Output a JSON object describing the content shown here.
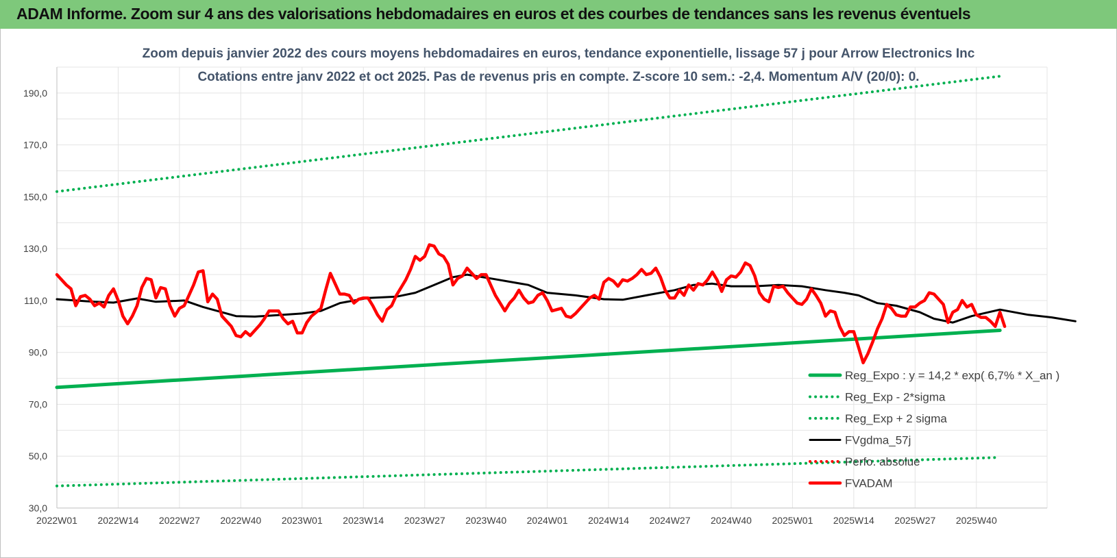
{
  "header": {
    "title": "ADAM Informe. Zoom sur 4 ans des valorisations hebdomadaires en euros et des courbes de tendances sans les revenus éventuels"
  },
  "colors": {
    "banner": "#7ec87b",
    "trend": "#00b050",
    "smooth": "#000000",
    "price": "#ff0000",
    "title": "#44546a"
  },
  "chart_data": {
    "type": "line",
    "title": "Zoom depuis janvier 2022 des cours moyens hebdomadaires en euros, tendance exponentielle, lissage 57 j pour Arrow Electronics Inc",
    "subtitle": "Cotations entre janv 2022 et oct 2025. Pas de revenus pris en compte. Z-score 10 sem.: -2,4.  Momentum A/V (20/0): 0.",
    "xlabel": "",
    "ylabel": "",
    "ylim": [
      30,
      200
    ],
    "yticks": [
      "30,0",
      "50,0",
      "70,0",
      "90,0",
      "110,0",
      "130,0",
      "150,0",
      "170,0",
      "190,0"
    ],
    "x_tick_labels": [
      "2022W01",
      "2022W14",
      "2022W27",
      "2022W40",
      "2023W01",
      "2023W14",
      "2023W27",
      "2023W40",
      "2024W01",
      "2024W14",
      "2024W27",
      "2024W40",
      "2025W01",
      "2025W14",
      "2025W27",
      "2025W40"
    ],
    "x_range_weeks": [
      0,
      200
    ],
    "grid": true,
    "legend_position": "bottom-right",
    "series": [
      {
        "name": "Reg_Expo : y = 14,2 * exp( 6,7% *  X_an )",
        "style": "solid-thick",
        "color": "#00b050",
        "points": [
          [
            0,
            76.5
          ],
          [
            200,
            98.5
          ]
        ]
      },
      {
        "name": "Reg_Exp - 2*sigma",
        "style": "dotted",
        "color": "#00b050",
        "points": [
          [
            0,
            38.5
          ],
          [
            200,
            49.5
          ]
        ]
      },
      {
        "name": "Reg_Exp + 2 sigma",
        "style": "dotted",
        "color": "#00b050",
        "points": [
          [
            0,
            152
          ],
          [
            200,
            196.5
          ]
        ]
      },
      {
        "name": "FVgdma_57j",
        "style": "solid",
        "color": "#000000",
        "points": [
          [
            0,
            110.5
          ],
          [
            8,
            109.5
          ],
          [
            12,
            109.2
          ],
          [
            17,
            110.8
          ],
          [
            21,
            109.5
          ],
          [
            27,
            110
          ],
          [
            31,
            107.5
          ],
          [
            38,
            104
          ],
          [
            42,
            103.8
          ],
          [
            48,
            104.5
          ],
          [
            52,
            105
          ],
          [
            56,
            106
          ],
          [
            60,
            109
          ],
          [
            66,
            111
          ],
          [
            72,
            111.5
          ],
          [
            76,
            113
          ],
          [
            80,
            116
          ],
          [
            84,
            119
          ],
          [
            87,
            120
          ],
          [
            92,
            118.5
          ],
          [
            100,
            116
          ],
          [
            104,
            113
          ],
          [
            110,
            112
          ],
          [
            116,
            110.5
          ],
          [
            120,
            110.3
          ],
          [
            125,
            112
          ],
          [
            131,
            114
          ],
          [
            135,
            116
          ],
          [
            139,
            116.5
          ],
          [
            143,
            115.5
          ],
          [
            148,
            115.5
          ],
          [
            153,
            116
          ],
          [
            158,
            115.5
          ],
          [
            163,
            114
          ],
          [
            167,
            113
          ],
          [
            170,
            112
          ],
          [
            174,
            109
          ],
          [
            178,
            108
          ],
          [
            183,
            105.5
          ],
          [
            186,
            103
          ],
          [
            190,
            101.5
          ],
          [
            194,
            104
          ],
          [
            200,
            106.5
          ],
          [
            206,
            104.5
          ],
          [
            211,
            103.5
          ],
          [
            216,
            102
          ]
        ]
      },
      {
        "name": "Perfo. absolue",
        "style": "dotted",
        "color": "#ff0000",
        "points": []
      },
      {
        "name": "FVADAM",
        "style": "solid-thick",
        "color": "#ff0000",
        "points": [
          [
            0,
            120
          ],
          [
            2,
            116
          ],
          [
            3,
            114.5
          ],
          [
            4,
            108
          ],
          [
            5,
            111.5
          ],
          [
            6,
            112
          ],
          [
            7,
            110.5
          ],
          [
            8,
            108
          ],
          [
            9,
            109
          ],
          [
            10,
            107.5
          ],
          [
            11,
            112
          ],
          [
            12,
            114.5
          ],
          [
            13,
            110
          ],
          [
            14,
            104
          ],
          [
            15,
            101
          ],
          [
            16,
            104
          ],
          [
            17,
            108
          ],
          [
            18,
            115
          ],
          [
            19,
            118.5
          ],
          [
            20,
            118
          ],
          [
            21,
            111
          ],
          [
            22,
            115
          ],
          [
            23,
            114.5
          ],
          [
            24,
            108
          ],
          [
            25,
            104
          ],
          [
            26,
            107
          ],
          [
            27,
            108
          ],
          [
            28,
            112
          ],
          [
            29,
            116
          ],
          [
            30,
            121
          ],
          [
            31,
            121.5
          ],
          [
            32,
            109.5
          ],
          [
            33,
            112.5
          ],
          [
            34,
            110.5
          ],
          [
            35,
            104
          ],
          [
            36,
            102
          ],
          [
            37,
            100
          ],
          [
            38,
            96.5
          ],
          [
            39,
            96
          ],
          [
            40,
            98
          ],
          [
            41,
            96.5
          ],
          [
            42,
            98.5
          ],
          [
            43,
            100.5
          ],
          [
            44,
            103
          ],
          [
            45,
            106
          ],
          [
            46,
            106
          ],
          [
            47,
            106
          ],
          [
            48,
            103
          ],
          [
            49,
            101
          ],
          [
            50,
            102
          ],
          [
            51,
            97.5
          ],
          [
            52,
            97.5
          ],
          [
            53,
            101.5
          ],
          [
            54,
            104
          ],
          [
            55,
            105.5
          ],
          [
            56,
            107
          ],
          [
            57,
            114
          ],
          [
            58,
            120.5
          ],
          [
            59,
            116.5
          ],
          [
            60,
            112.5
          ],
          [
            61,
            112.5
          ],
          [
            62,
            112
          ],
          [
            63,
            109
          ],
          [
            64,
            110.5
          ],
          [
            65,
            111
          ],
          [
            66,
            111
          ],
          [
            67,
            108
          ],
          [
            68,
            104.5
          ],
          [
            69,
            102
          ],
          [
            70,
            106.5
          ],
          [
            71,
            108
          ],
          [
            72,
            112
          ],
          [
            73,
            115
          ],
          [
            74,
            118
          ],
          [
            75,
            122
          ],
          [
            76,
            127
          ],
          [
            77,
            125.5
          ],
          [
            78,
            127
          ],
          [
            79,
            131.5
          ],
          [
            80,
            131
          ],
          [
            81,
            128
          ],
          [
            82,
            127
          ],
          [
            83,
            124
          ],
          [
            84,
            116
          ],
          [
            85,
            118.5
          ],
          [
            86,
            119.5
          ],
          [
            87,
            122.5
          ],
          [
            88,
            120.5
          ],
          [
            89,
            118.5
          ],
          [
            90,
            120
          ],
          [
            91,
            120
          ],
          [
            92,
            116
          ],
          [
            93,
            112
          ],
          [
            94,
            109
          ],
          [
            95,
            106
          ],
          [
            96,
            109
          ],
          [
            97,
            111
          ],
          [
            98,
            114
          ],
          [
            99,
            111
          ],
          [
            100,
            109
          ],
          [
            101,
            109.5
          ],
          [
            102,
            112
          ],
          [
            103,
            113
          ],
          [
            104,
            110
          ],
          [
            105,
            106
          ],
          [
            106,
            106.5
          ],
          [
            107,
            107
          ],
          [
            108,
            104
          ],
          [
            109,
            103.5
          ],
          [
            110,
            105
          ],
          [
            111,
            107
          ],
          [
            112,
            109
          ],
          [
            113,
            111
          ],
          [
            114,
            112
          ],
          [
            115,
            110.5
          ],
          [
            116,
            117
          ],
          [
            117,
            118.5
          ],
          [
            118,
            117.5
          ],
          [
            119,
            115.5
          ],
          [
            120,
            118
          ],
          [
            121,
            117.5
          ],
          [
            122,
            118.5
          ],
          [
            123,
            120
          ],
          [
            124,
            122
          ],
          [
            125,
            120
          ],
          [
            126,
            120.5
          ],
          [
            127,
            122.5
          ],
          [
            128,
            119
          ],
          [
            129,
            114
          ],
          [
            130,
            111
          ],
          [
            131,
            111
          ],
          [
            132,
            114
          ],
          [
            133,
            112
          ],
          [
            134,
            116
          ],
          [
            135,
            114
          ],
          [
            136,
            116.5
          ],
          [
            137,
            116
          ],
          [
            138,
            118
          ],
          [
            139,
            121
          ],
          [
            140,
            118
          ],
          [
            141,
            113.5
          ],
          [
            142,
            118
          ],
          [
            143,
            119.5
          ],
          [
            144,
            119
          ],
          [
            145,
            121
          ],
          [
            146,
            124.5
          ],
          [
            147,
            123.5
          ],
          [
            148,
            119.5
          ],
          [
            149,
            113
          ],
          [
            150,
            110.5
          ],
          [
            151,
            109.5
          ],
          [
            152,
            115.5
          ],
          [
            153,
            115
          ],
          [
            154,
            115.5
          ],
          [
            155,
            113
          ],
          [
            156,
            111
          ],
          [
            157,
            109
          ],
          [
            158,
            108.5
          ],
          [
            159,
            110.5
          ],
          [
            160,
            114.5
          ],
          [
            161,
            112
          ],
          [
            162,
            109
          ],
          [
            163,
            104
          ],
          [
            164,
            106
          ],
          [
            165,
            105.5
          ],
          [
            166,
            100
          ],
          [
            167,
            96.5
          ],
          [
            168,
            98
          ],
          [
            169,
            98
          ],
          [
            170,
            92
          ],
          [
            171,
            86
          ],
          [
            172,
            89.5
          ],
          [
            173,
            94
          ],
          [
            174,
            99
          ],
          [
            175,
            103
          ],
          [
            176,
            108.5
          ],
          [
            177,
            107
          ],
          [
            178,
            104.5
          ],
          [
            179,
            104
          ],
          [
            180,
            104
          ],
          [
            181,
            107.5
          ],
          [
            182,
            107.5
          ],
          [
            183,
            109
          ],
          [
            184,
            110
          ],
          [
            185,
            113
          ],
          [
            186,
            112.5
          ],
          [
            187,
            110.5
          ],
          [
            188,
            108.5
          ],
          [
            189,
            101.5
          ],
          [
            190,
            105.5
          ],
          [
            191,
            106.5
          ],
          [
            192,
            110
          ],
          [
            193,
            107.5
          ],
          [
            194,
            108.5
          ],
          [
            195,
            104.5
          ],
          [
            196,
            103.5
          ],
          [
            197,
            103.5
          ],
          [
            198,
            102
          ],
          [
            199,
            100
          ],
          [
            200,
            105.5
          ],
          [
            201,
            100
          ]
        ]
      }
    ]
  }
}
